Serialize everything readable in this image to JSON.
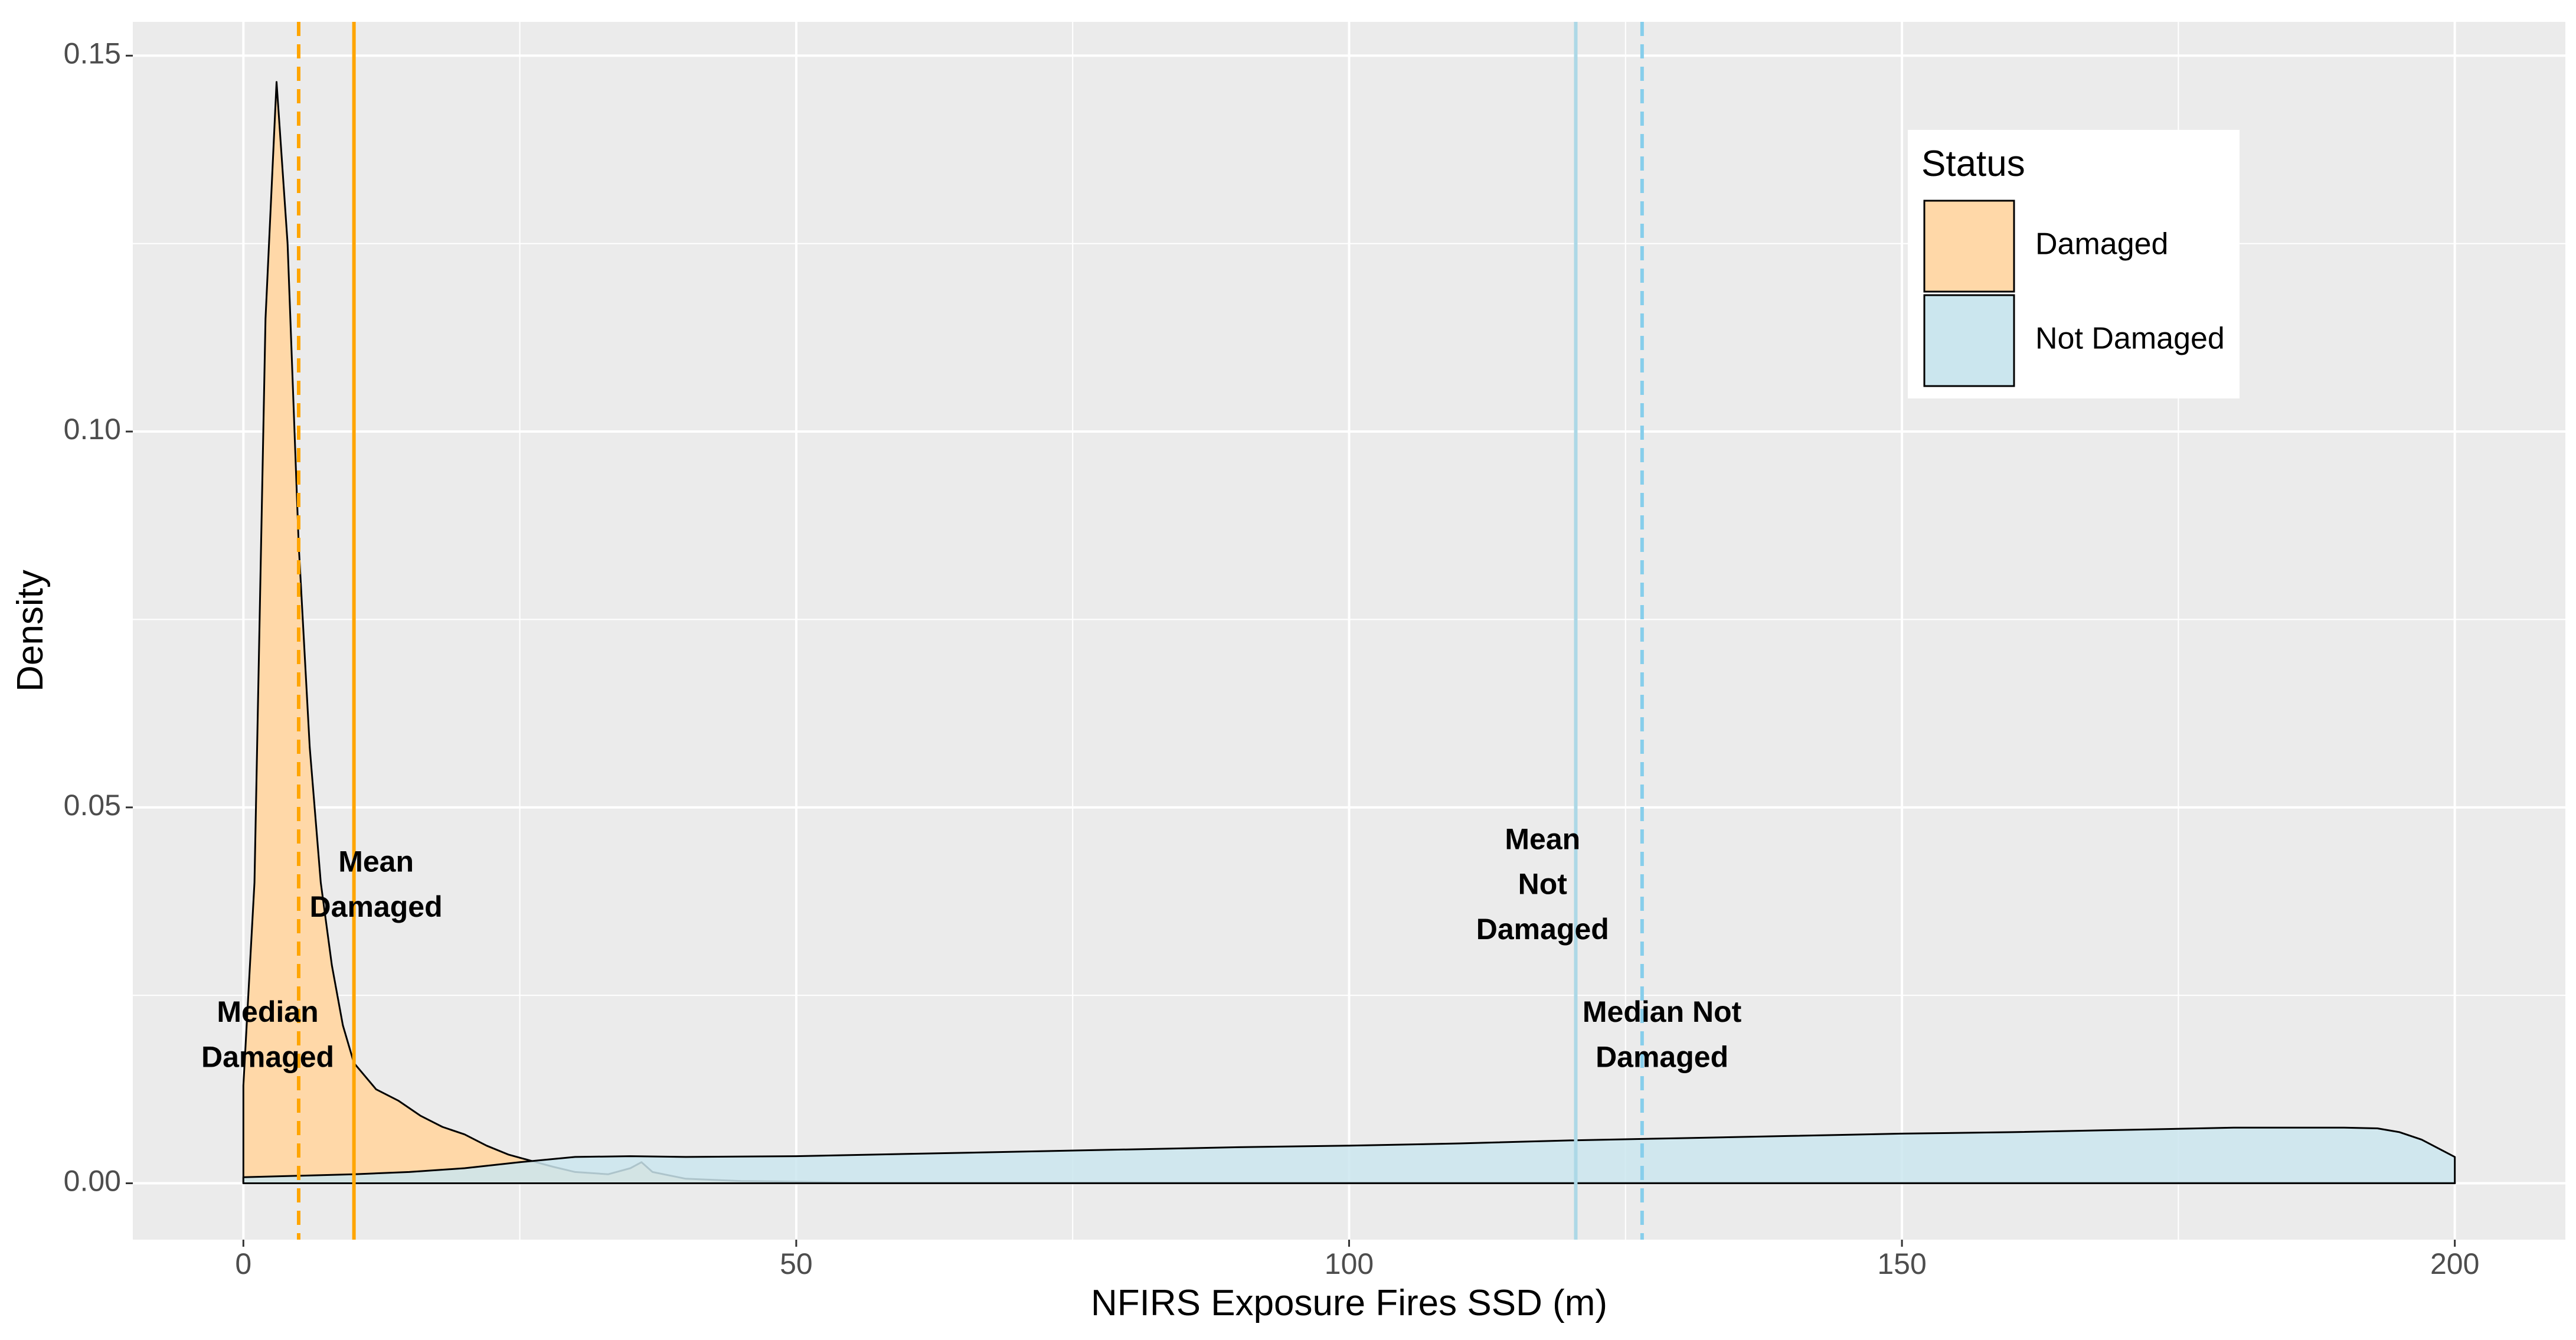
{
  "chart_data": {
    "type": "area",
    "title": "",
    "xlabel": "NFIRS Exposure Fires SSD (m)",
    "ylabel": "Density",
    "xlim": [
      -10,
      210
    ],
    "ylim": [
      -0.0075,
      0.1545
    ],
    "x_ticks": [
      0,
      50,
      100,
      150,
      200
    ],
    "x_tick_labels": [
      "0",
      "50",
      "100",
      "150",
      "200"
    ],
    "y_ticks": [
      0.0,
      0.05,
      0.1,
      0.15
    ],
    "y_tick_labels": [
      "0.00",
      "0.05",
      "0.10",
      "0.15"
    ],
    "grid": true,
    "legend": {
      "title": "Status",
      "placement": "top-right",
      "entries": [
        {
          "label": "Damaged",
          "color": "#FFD8A8"
        },
        {
          "label": "Not Damaged",
          "color": "#CBE6EE"
        }
      ]
    },
    "series": [
      {
        "name": "Damaged",
        "fill": "#FFD8A8",
        "fill_opacity": 1,
        "x": [
          0,
          1,
          2,
          3,
          4,
          5,
          6,
          7,
          8,
          9,
          10,
          12,
          14,
          16,
          18,
          20,
          22,
          24,
          26,
          28,
          30,
          33,
          35,
          36,
          37,
          40,
          45,
          50,
          55,
          60,
          70,
          80,
          90,
          100,
          120,
          140,
          160,
          180,
          200
        ],
        "y": [
          0.013,
          0.04,
          0.115,
          0.1465,
          0.125,
          0.085,
          0.058,
          0.04,
          0.029,
          0.021,
          0.016,
          0.0125,
          0.011,
          0.009,
          0.0075,
          0.0065,
          0.005,
          0.0038,
          0.003,
          0.0022,
          0.0015,
          0.0012,
          0.002,
          0.0028,
          0.0015,
          0.0006,
          0.0003,
          0.0002,
          0.0001,
          0.0001,
          0.0001,
          0.0001,
          0.0001,
          0.0001,
          0.0001,
          0.0001,
          0.0001,
          0.0001,
          0.0001
        ]
      },
      {
        "name": "Not Damaged",
        "fill": "#CBE6EE",
        "fill_opacity": 0.85,
        "x": [
          0,
          5,
          10,
          15,
          20,
          25,
          30,
          35,
          40,
          50,
          60,
          70,
          80,
          90,
          100,
          110,
          120,
          130,
          140,
          150,
          160,
          170,
          180,
          190,
          193,
          195,
          197,
          200
        ],
        "y": [
          0.0008,
          0.001,
          0.0012,
          0.0015,
          0.002,
          0.0028,
          0.0035,
          0.0036,
          0.0035,
          0.0036,
          0.0039,
          0.0042,
          0.0045,
          0.0048,
          0.005,
          0.0053,
          0.0057,
          0.006,
          0.0063,
          0.0066,
          0.0068,
          0.0071,
          0.0074,
          0.0074,
          0.0073,
          0.0068,
          0.0058,
          0.0035
        ]
      }
    ],
    "reference_lines": [
      {
        "name": "Mean Damaged",
        "x": 10,
        "color": "#FFA500",
        "style": "solid"
      },
      {
        "name": "Median Damaged",
        "x": 5,
        "color": "#FFA500",
        "style": "dashed"
      },
      {
        "name": "Mean Not Damaged",
        "x": 120.5,
        "color": "#ADD8E6",
        "style": "solid"
      },
      {
        "name": "Median Not Damaged",
        "x": 126.5,
        "color": "#87CEEB",
        "style": "dashed"
      }
    ],
    "annotations": [
      {
        "lines": [
          "Mean",
          "Damaged"
        ],
        "x": 12,
        "y": 0.0425,
        "line_step": 0.006
      },
      {
        "lines": [
          "Median",
          "Damaged"
        ],
        "x": 2.2,
        "y": 0.0225,
        "line_step": 0.006
      },
      {
        "lines": [
          "Mean",
          "Not",
          "Damaged"
        ],
        "x": 117.5,
        "y": 0.0455,
        "line_step": 0.006
      },
      {
        "lines": [
          "Median Not",
          "Damaged"
        ],
        "x": 128.3,
        "y": 0.0225,
        "line_step": 0.006
      }
    ]
  }
}
